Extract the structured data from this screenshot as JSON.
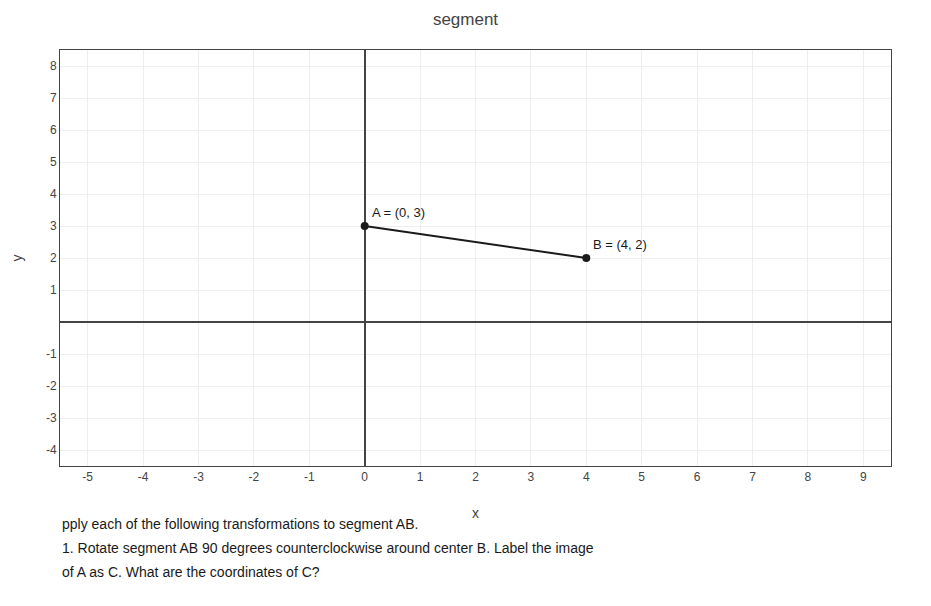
{
  "chart_data": {
    "type": "line",
    "title": "segment",
    "x": [
      0,
      4
    ],
    "values": [
      3,
      2
    ],
    "color": "#1a1a1a",
    "marker": "circle",
    "line_style": "solid",
    "xlabel": "x",
    "ylabel": "y",
    "xlim": [
      -5.5,
      9.5
    ],
    "ylim": [
      -4.5,
      8.5
    ],
    "xticks": [
      -5,
      -4,
      -3,
      -2,
      -1,
      0,
      1,
      2,
      3,
      4,
      5,
      6,
      7,
      8,
      9
    ],
    "yticks": [
      -4,
      -3,
      -2,
      -1,
      1,
      2,
      3,
      4,
      5,
      6,
      7,
      8
    ],
    "grid": true,
    "annotations": [
      {
        "text": "A = (0, 3)",
        "x": 0,
        "y": 3
      },
      {
        "text": "B = (4, 2)",
        "x": 4,
        "y": 2
      },
      {
        "text": "pply each of the following transformations to segment AB."
      },
      {
        "text": "1. Rotate segment AB 90 degrees counterclockwise around center B. Label the image"
      },
      {
        "text": "of A as C. What are the coordinates of C?"
      }
    ]
  }
}
